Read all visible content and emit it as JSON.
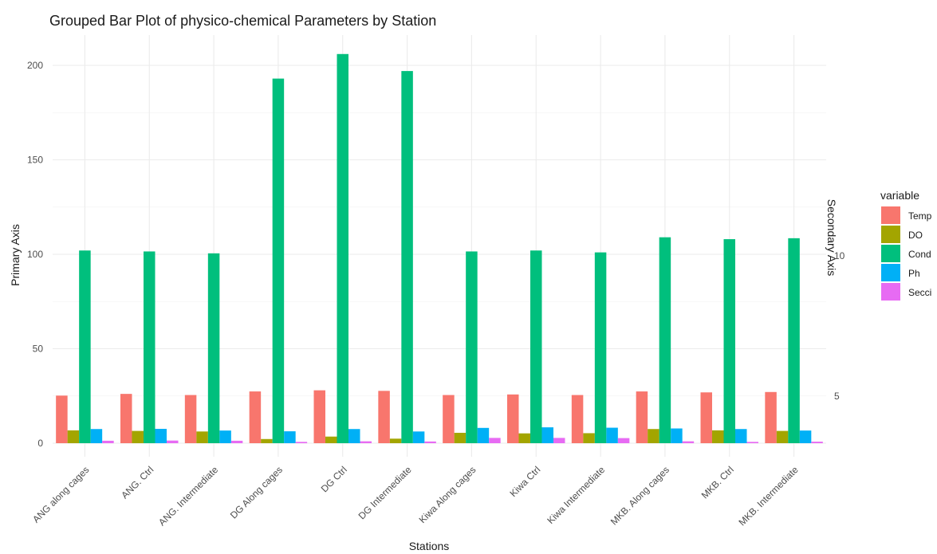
{
  "chart_data": {
    "type": "bar",
    "title": "Grouped Bar Plot of physico-chemical Parameters by Station",
    "xlabel": "Stations",
    "ylabel": "Primary Axis",
    "y2label": "Secondary Axis",
    "ylim": [
      0,
      215
    ],
    "yticks": [
      0,
      50,
      100,
      150,
      200
    ],
    "y2ticks": [
      "5",
      "10"
    ],
    "grid": true,
    "legend_position": "right",
    "legend_title": "variable",
    "categories": [
      "ANG along cages",
      "ANG. Ctrl",
      "ANG. Intermediate",
      "DG Along cages",
      "DG Ctrl",
      "DG Intermediate",
      "Kiwa Along cages",
      "Kiwa Ctrl",
      "Kiwa Intermediate",
      "MKB. Along cages",
      "MKB. Ctrl",
      "MKB. Intermediate"
    ],
    "series": [
      {
        "name": "Temp",
        "color": "#F8766D",
        "values": [
          25.2,
          26.1,
          25.5,
          27.4,
          28.0,
          27.7,
          25.5,
          25.8,
          25.5,
          27.4,
          26.9,
          27.1
        ]
      },
      {
        "name": "DO",
        "color": "#A3A500",
        "values": [
          6.8,
          6.5,
          6.2,
          2.2,
          3.5,
          2.4,
          5.5,
          5.2,
          5.3,
          7.5,
          6.8,
          6.5
        ]
      },
      {
        "name": "Cond",
        "color": "#00BF7D",
        "values": [
          102,
          101.5,
          100.5,
          193,
          206,
          197,
          101.5,
          102,
          101,
          109,
          108,
          108.5
        ]
      },
      {
        "name": "Ph",
        "color": "#00B0F6",
        "values": [
          7.5,
          7.6,
          6.7,
          6.3,
          7.5,
          6.2,
          8.1,
          8.4,
          8.2,
          7.8,
          7.5,
          6.7
        ]
      },
      {
        "name": "Secci",
        "color": "#E76BF3",
        "values": [
          1.3,
          1.4,
          1.3,
          0.7,
          1.0,
          0.9,
          2.8,
          2.8,
          2.7,
          1.0,
          0.7,
          0.8
        ]
      }
    ]
  }
}
